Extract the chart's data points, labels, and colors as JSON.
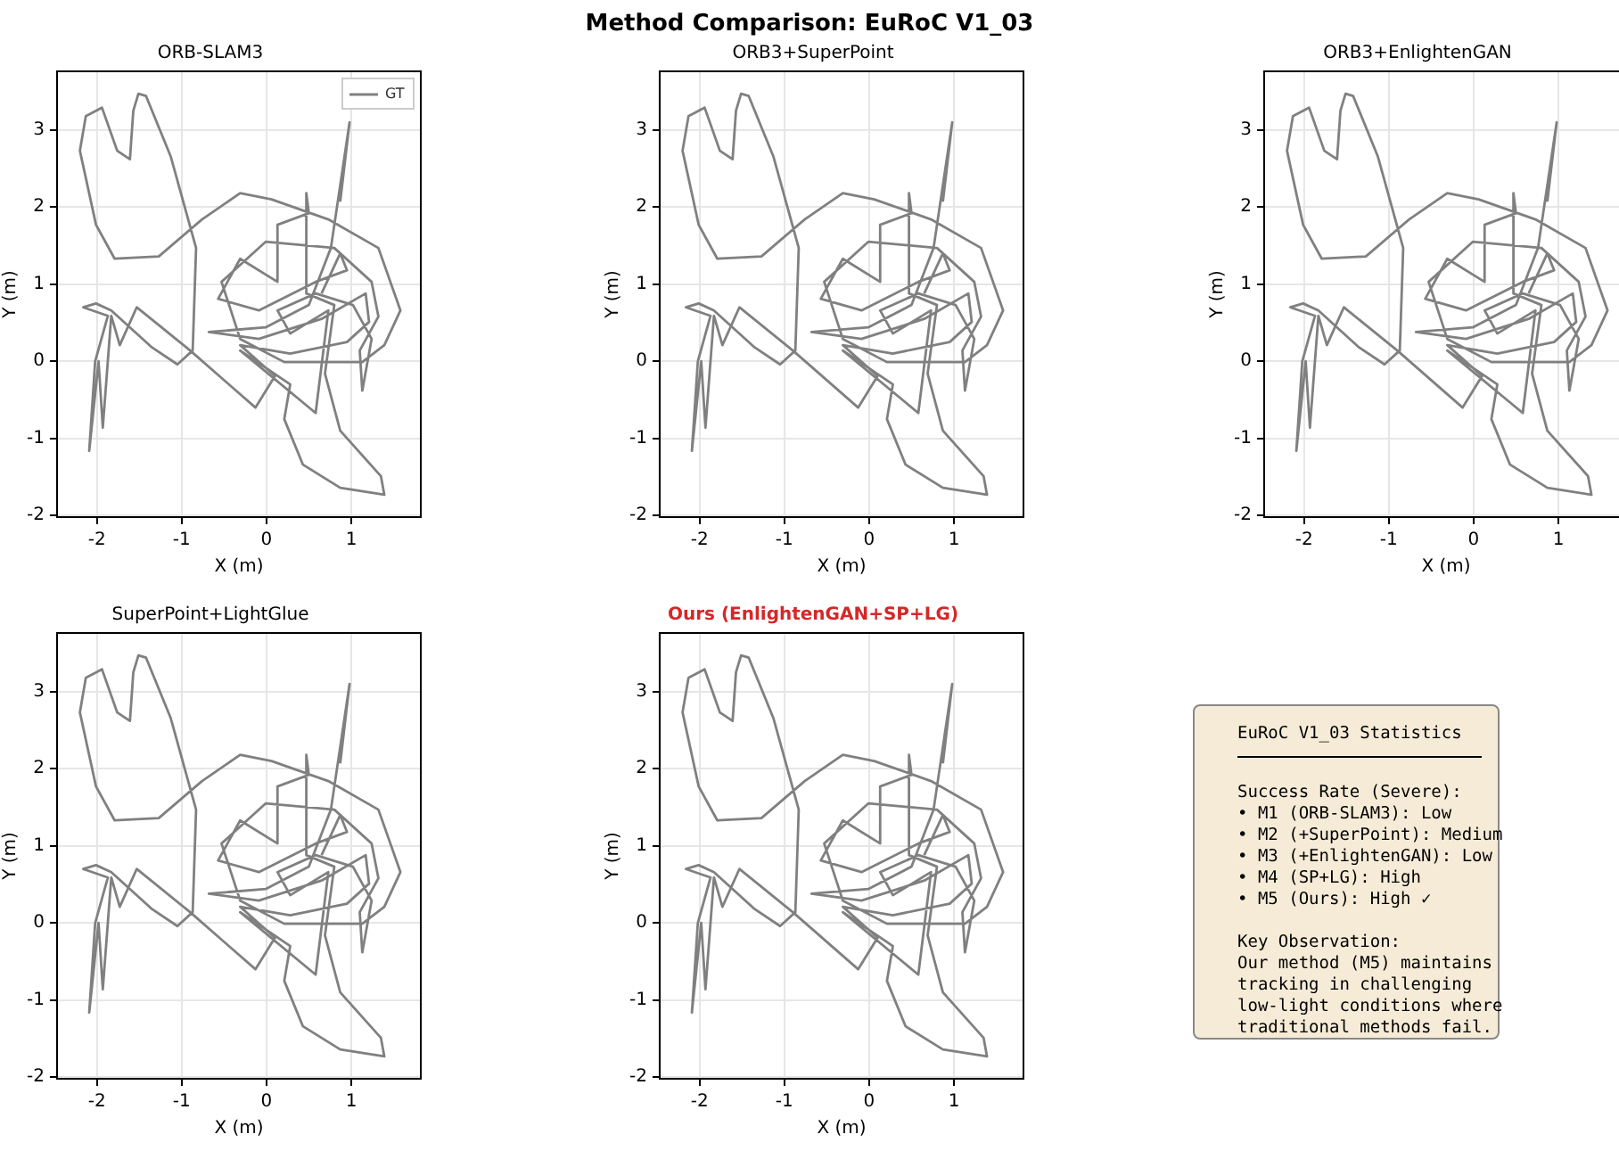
{
  "chart_data": [
    {
      "type": "line",
      "title": "ORB-SLAM3",
      "xlabel": "X (m)",
      "ylabel": "Y (m)",
      "xlim": [
        -2.47,
        1.82
      ],
      "ylim": [
        -2.02,
        3.76
      ],
      "xticks": [
        -2,
        -1,
        0,
        1
      ],
      "yticks": [
        -2,
        -1,
        0,
        1,
        2,
        3
      ],
      "grid": true,
      "legend": "top right",
      "x": [
        0.87,
        0.98,
        0.76,
        0.5,
        -0.01,
        -0.68,
        -0.09,
        0.65,
        1.17,
        1.21,
        0.95,
        0.28,
        -0.31,
        0.1,
        -0.13,
        -0.9,
        -1.53,
        -1.73,
        -1.83,
        -1.93,
        -1.98,
        -2.09,
        -2.02,
        -1.87,
        -2.16,
        -2.01,
        -1.83,
        -1.35,
        -1.05,
        -0.87,
        -0.83,
        -1.13,
        -1.42,
        -1.51,
        -1.57,
        -1.61,
        -1.76,
        -1.94,
        -2.13,
        -2.2,
        -2.01,
        -1.79,
        -1.27,
        -0.76,
        -0.31,
        0.06,
        0.73,
        1.32,
        1.58,
        1.39,
        1.13,
        0.73,
        0.21,
        -0.31,
        -0.53,
        -0.01,
        0.8,
        1.24,
        1.32,
        1.1,
        1.13,
        1.24,
        1.02,
        0.58,
        0.13,
        0.28,
        0.73,
        0.58,
        -0.31,
        0.28,
        0.21,
        0.43,
        0.87,
        1.39,
        1.35,
        0.87,
        0.69,
        0.8,
        0.47,
        0.47,
        0.5,
        0.13,
        0.13,
        -0.31,
        -0.57,
        -0.09,
        0.58,
        0.95,
        0.87,
        0.65
      ],
      "series": [
        {
          "name": "GT",
          "color": "#808080",
          "values": [
            2.07,
            3.1,
            1.47,
            0.73,
            0.44,
            0.38,
            0.29,
            0.55,
            0.88,
            0.51,
            0.25,
            0.1,
            0.21,
            -0.19,
            -0.6,
            0.14,
            0.7,
            0.21,
            0.59,
            -0.86,
            0.0,
            -1.16,
            0.0,
            0.59,
            0.7,
            0.75,
            0.66,
            0.18,
            -0.04,
            0.14,
            1.47,
            2.66,
            3.44,
            3.47,
            3.25,
            2.62,
            2.73,
            3.29,
            3.18,
            2.73,
            1.77,
            1.33,
            1.36,
            1.84,
            2.18,
            2.1,
            1.84,
            1.47,
            0.66,
            0.21,
            -0.01,
            -0.01,
            -0.01,
            0.29,
            1.03,
            1.55,
            1.47,
            1.03,
            0.58,
            0.14,
            -0.38,
            0.29,
            0.73,
            0.88,
            0.66,
            0.36,
            0.66,
            -0.67,
            0.14,
            -0.3,
            -0.75,
            -1.34,
            -1.64,
            -1.73,
            -1.49,
            -0.9,
            -0.16,
            0.73,
            0.88,
            2.18,
            1.92,
            1.77,
            1.03,
            1.33,
            0.81,
            0.66,
            1.03,
            1.18,
            1.4,
            0.88
          ]
        }
      ]
    },
    {
      "type": "line",
      "subtitle": "Method Comparison: EuRoC V1_03",
      "title": "ORB3+SuperPoint",
      "xlabel": "X (m)",
      "ylabel": "Y (m)",
      "xlim": [
        -2.47,
        1.82
      ],
      "ylim": [
        -2.02,
        3.76
      ],
      "xticks": [
        -2,
        -1,
        0,
        1
      ],
      "yticks": [
        -2,
        -1,
        0,
        1,
        2,
        3
      ],
      "grid": true,
      "x": [
        0.87,
        0.98,
        0.76,
        0.5,
        -0.01,
        -0.68,
        -0.09,
        0.65,
        1.17,
        1.21,
        0.95,
        0.28,
        -0.31,
        0.1,
        -0.13,
        -0.9,
        -1.53,
        -1.73,
        -1.83,
        -1.93,
        -1.98,
        -2.09,
        -2.02,
        -1.87,
        -2.16,
        -2.01,
        -1.83,
        -1.35,
        -1.05,
        -0.87,
        -0.83,
        -1.13,
        -1.42,
        -1.51,
        -1.57,
        -1.61,
        -1.76,
        -1.94,
        -2.13,
        -2.2,
        -2.01,
        -1.79,
        -1.27,
        -0.76,
        -0.31,
        0.06,
        0.73,
        1.32,
        1.58,
        1.39,
        1.13,
        0.73,
        0.21,
        -0.31,
        -0.53,
        -0.01,
        0.8,
        1.24,
        1.32,
        1.1,
        1.13,
        1.24,
        1.02,
        0.58,
        0.13,
        0.28,
        0.73,
        0.58,
        -0.31,
        0.28,
        0.21,
        0.43,
        0.87,
        1.39,
        1.35,
        0.87,
        0.69,
        0.8,
        0.47,
        0.47,
        0.5,
        0.13,
        0.13,
        -0.31,
        -0.57,
        -0.09,
        0.58,
        0.95,
        0.87,
        0.65
      ],
      "series": [
        {
          "color": "#808080",
          "values": [
            2.07,
            3.1,
            1.47,
            0.73,
            0.44,
            0.38,
            0.29,
            0.55,
            0.88,
            0.51,
            0.25,
            0.1,
            0.21,
            -0.19,
            -0.6,
            0.14,
            0.7,
            0.21,
            0.59,
            -0.86,
            0.0,
            -1.16,
            0.0,
            0.59,
            0.7,
            0.75,
            0.66,
            0.18,
            -0.04,
            0.14,
            1.47,
            2.66,
            3.44,
            3.47,
            3.25,
            2.62,
            2.73,
            3.29,
            3.18,
            2.73,
            1.77,
            1.33,
            1.36,
            1.84,
            2.18,
            2.1,
            1.84,
            1.47,
            0.66,
            0.21,
            -0.01,
            -0.01,
            -0.01,
            0.29,
            1.03,
            1.55,
            1.47,
            1.03,
            0.58,
            0.14,
            -0.38,
            0.29,
            0.73,
            0.88,
            0.66,
            0.36,
            0.66,
            -0.67,
            0.14,
            -0.3,
            -0.75,
            -1.34,
            -1.64,
            -1.73,
            -1.49,
            -0.9,
            -0.16,
            0.73,
            0.88,
            2.18,
            1.92,
            1.77,
            1.03,
            1.33,
            0.81,
            0.66,
            1.03,
            1.18,
            1.4,
            0.88
          ]
        }
      ]
    },
    {
      "type": "line",
      "title": "ORB3+EnlightenGAN",
      "xlabel": "X (m)",
      "ylabel": "Y (m)",
      "xlim": [
        -2.47,
        1.82
      ],
      "ylim": [
        -2.02,
        3.76
      ],
      "xticks": [
        -2,
        -1,
        0,
        1
      ],
      "yticks": [
        -2,
        -1,
        0,
        1,
        2,
        3
      ],
      "grid": true,
      "x": [
        0.87,
        0.98,
        0.76,
        0.5,
        -0.01,
        -0.68,
        -0.09,
        0.65,
        1.17,
        1.21,
        0.95,
        0.28,
        -0.31,
        0.1,
        -0.13,
        -0.9,
        -1.53,
        -1.73,
        -1.83,
        -1.93,
        -1.98,
        -2.09,
        -2.02,
        -1.87,
        -2.16,
        -2.01,
        -1.83,
        -1.35,
        -1.05,
        -0.87,
        -0.83,
        -1.13,
        -1.42,
        -1.51,
        -1.57,
        -1.61,
        -1.76,
        -1.94,
        -2.13,
        -2.2,
        -2.01,
        -1.79,
        -1.27,
        -0.76,
        -0.31,
        0.06,
        0.73,
        1.32,
        1.58,
        1.39,
        1.13,
        0.73,
        0.21,
        -0.31,
        -0.53,
        -0.01,
        0.8,
        1.24,
        1.32,
        1.1,
        1.13,
        1.24,
        1.02,
        0.58,
        0.13,
        0.28,
        0.73,
        0.58,
        -0.31,
        0.28,
        0.21,
        0.43,
        0.87,
        1.39,
        1.35,
        0.87,
        0.69,
        0.8,
        0.47,
        0.47,
        0.5,
        0.13,
        0.13,
        -0.31,
        -0.57,
        -0.09,
        0.58,
        0.95,
        0.87,
        0.65
      ],
      "series": [
        {
          "color": "#808080",
          "values": [
            2.07,
            3.1,
            1.47,
            0.73,
            0.44,
            0.38,
            0.29,
            0.55,
            0.88,
            0.51,
            0.25,
            0.1,
            0.21,
            -0.19,
            -0.6,
            0.14,
            0.7,
            0.21,
            0.59,
            -0.86,
            0.0,
            -1.16,
            0.0,
            0.59,
            0.7,
            0.75,
            0.66,
            0.18,
            -0.04,
            0.14,
            1.47,
            2.66,
            3.44,
            3.47,
            3.25,
            2.62,
            2.73,
            3.29,
            3.18,
            2.73,
            1.77,
            1.33,
            1.36,
            1.84,
            2.18,
            2.1,
            1.84,
            1.47,
            0.66,
            0.21,
            -0.01,
            -0.01,
            -0.01,
            0.29,
            1.03,
            1.55,
            1.47,
            1.03,
            0.58,
            0.14,
            -0.38,
            0.29,
            0.73,
            0.88,
            0.66,
            0.36,
            0.66,
            -0.67,
            0.14,
            -0.3,
            -0.75,
            -1.34,
            -1.64,
            -1.73,
            -1.49,
            -0.9,
            -0.16,
            0.73,
            0.88,
            2.18,
            1.92,
            1.77,
            1.03,
            1.33,
            0.81,
            0.66,
            1.03,
            1.18,
            1.4,
            0.88
          ]
        }
      ]
    },
    {
      "type": "line",
      "title": "SuperPoint+LightGlue",
      "xlabel": "X (m)",
      "ylabel": "Y (m)",
      "xlim": [
        -2.47,
        1.82
      ],
      "ylim": [
        -2.02,
        3.76
      ],
      "xticks": [
        -2,
        -1,
        0,
        1
      ],
      "yticks": [
        -2,
        -1,
        0,
        1,
        2,
        3
      ],
      "grid": true,
      "x": [
        0.87,
        0.98,
        0.76,
        0.5,
        -0.01,
        -0.68,
        -0.09,
        0.65,
        1.17,
        1.21,
        0.95,
        0.28,
        -0.31,
        0.1,
        -0.13,
        -0.9,
        -1.53,
        -1.73,
        -1.83,
        -1.93,
        -1.98,
        -2.09,
        -2.02,
        -1.87,
        -2.16,
        -2.01,
        -1.83,
        -1.35,
        -1.05,
        -0.87,
        -0.83,
        -1.13,
        -1.42,
        -1.51,
        -1.57,
        -1.61,
        -1.76,
        -1.94,
        -2.13,
        -2.2,
        -2.01,
        -1.79,
        -1.27,
        -0.76,
        -0.31,
        0.06,
        0.73,
        1.32,
        1.58,
        1.39,
        1.13,
        0.73,
        0.21,
        -0.31,
        -0.53,
        -0.01,
        0.8,
        1.24,
        1.32,
        1.1,
        1.13,
        1.24,
        1.02,
        0.58,
        0.13,
        0.28,
        0.73,
        0.58,
        -0.31,
        0.28,
        0.21,
        0.43,
        0.87,
        1.39,
        1.35,
        0.87,
        0.69,
        0.8,
        0.47,
        0.47,
        0.5,
        0.13,
        0.13,
        -0.31,
        -0.57,
        -0.09,
        0.58,
        0.95,
        0.87,
        0.65
      ],
      "series": [
        {
          "color": "#808080",
          "values": [
            2.07,
            3.1,
            1.47,
            0.73,
            0.44,
            0.38,
            0.29,
            0.55,
            0.88,
            0.51,
            0.25,
            0.1,
            0.21,
            -0.19,
            -0.6,
            0.14,
            0.7,
            0.21,
            0.59,
            -0.86,
            0.0,
            -1.16,
            0.0,
            0.59,
            0.7,
            0.75,
            0.66,
            0.18,
            -0.04,
            0.14,
            1.47,
            2.66,
            3.44,
            3.47,
            3.25,
            2.62,
            2.73,
            3.29,
            3.18,
            2.73,
            1.77,
            1.33,
            1.36,
            1.84,
            2.18,
            2.1,
            1.84,
            1.47,
            0.66,
            0.21,
            -0.01,
            -0.01,
            -0.01,
            0.29,
            1.03,
            1.55,
            1.47,
            1.03,
            0.58,
            0.14,
            -0.38,
            0.29,
            0.73,
            0.88,
            0.66,
            0.36,
            0.66,
            -0.67,
            0.14,
            -0.3,
            -0.75,
            -1.34,
            -1.64,
            -1.73,
            -1.49,
            -0.9,
            -0.16,
            0.73,
            0.88,
            2.18,
            1.92,
            1.77,
            1.03,
            1.33,
            0.81,
            0.66,
            1.03,
            1.18,
            1.4,
            0.88
          ]
        }
      ]
    },
    {
      "type": "line",
      "title": "Ours (EnlightenGAN+SP+LG)",
      "xlabel": "X (m)",
      "ylabel": "Y (m)",
      "xlim": [
        -2.47,
        1.82
      ],
      "ylim": [
        -2.02,
        3.76
      ],
      "xticks": [
        -2,
        -1,
        0,
        1
      ],
      "yticks": [
        -2,
        -1,
        0,
        1,
        2,
        3
      ],
      "grid": true,
      "x": [
        0.87,
        0.98,
        0.76,
        0.5,
        -0.01,
        -0.68,
        -0.09,
        0.65,
        1.17,
        1.21,
        0.95,
        0.28,
        -0.31,
        0.1,
        -0.13,
        -0.9,
        -1.53,
        -1.73,
        -1.83,
        -1.93,
        -1.98,
        -2.09,
        -2.02,
        -1.87,
        -2.16,
        -2.01,
        -1.83,
        -1.35,
        -1.05,
        -0.87,
        -0.83,
        -1.13,
        -1.42,
        -1.51,
        -1.57,
        -1.61,
        -1.76,
        -1.94,
        -2.13,
        -2.2,
        -2.01,
        -1.79,
        -1.27,
        -0.76,
        -0.31,
        0.06,
        0.73,
        1.32,
        1.58,
        1.39,
        1.13,
        0.73,
        0.21,
        -0.31,
        -0.53,
        -0.01,
        0.8,
        1.24,
        1.32,
        1.1,
        1.13,
        1.24,
        1.02,
        0.58,
        0.13,
        0.28,
        0.73,
        0.58,
        -0.31,
        0.28,
        0.21,
        0.43,
        0.87,
        1.39,
        1.35,
        0.87,
        0.69,
        0.8,
        0.47,
        0.47,
        0.5,
        0.13,
        0.13,
        -0.31,
        -0.57,
        -0.09,
        0.58,
        0.95,
        0.87,
        0.65
      ],
      "series": [
        {
          "color": "#808080",
          "values": [
            2.07,
            3.1,
            1.47,
            0.73,
            0.44,
            0.38,
            0.29,
            0.55,
            0.88,
            0.51,
            0.25,
            0.1,
            0.21,
            -0.19,
            -0.6,
            0.14,
            0.7,
            0.21,
            0.59,
            -0.86,
            0.0,
            -1.16,
            0.0,
            0.59,
            0.7,
            0.75,
            0.66,
            0.18,
            -0.04,
            0.14,
            1.47,
            2.66,
            3.44,
            3.47,
            3.25,
            2.62,
            2.73,
            3.29,
            3.18,
            2.73,
            1.77,
            1.33,
            1.36,
            1.84,
            2.18,
            2.1,
            1.84,
            1.47,
            0.66,
            0.21,
            -0.01,
            -0.01,
            -0.01,
            0.29,
            1.03,
            1.55,
            1.47,
            1.03,
            0.58,
            0.14,
            -0.38,
            0.29,
            0.73,
            0.88,
            0.66,
            0.36,
            0.66,
            -0.67,
            0.14,
            -0.3,
            -0.75,
            -1.34,
            -1.64,
            -1.73,
            -1.49,
            -0.9,
            -0.16,
            0.73,
            0.88,
            2.18,
            1.92,
            1.77,
            1.03,
            1.33,
            0.81,
            0.66,
            1.03,
            1.18,
            1.4,
            0.88
          ]
        }
      ]
    },
    {
      "type": "other",
      "title": "EuRoC V1_03 Statistics",
      "annotations": [
        "Success Rate (Severe):",
        "• M1 (ORB-SLAM3): Low",
        "• M2 (+SuperPoint): Medium",
        "• M3 (+EnlightenGAN): Low",
        "• M4 (SP+LG): High",
        "• M5 (Ours): High ✓",
        "Key Observation:",
        "Our method (M5) maintains",
        "tracking in challenging",
        "low-light conditions where",
        "traditional methods fail."
      ]
    }
  ]
}
